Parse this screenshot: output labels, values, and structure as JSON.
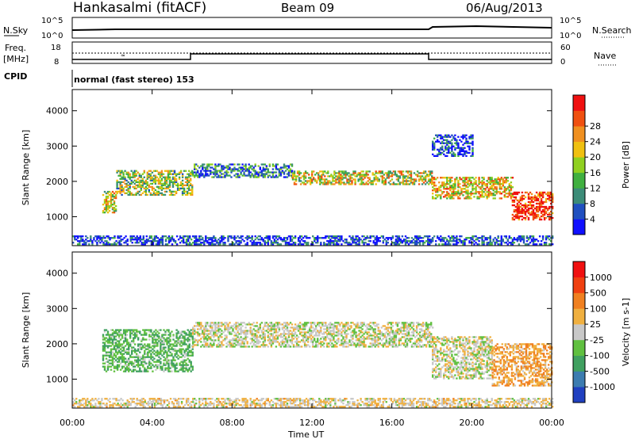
{
  "header": {
    "station": "Hankasalmi (fitACF)",
    "beam": "Beam 09",
    "date": "06/Aug/2013"
  },
  "info_panel": {
    "nsky_label": "N.Sky",
    "nsky_ticks": [
      "10^5",
      "10^0"
    ],
    "nsearch_label": "N.Search",
    "nsearch_ticks": [
      "10^5",
      "10^0"
    ],
    "freq_label_1": "Freq.",
    "freq_label_2": "[MHz]",
    "freq_ticks": [
      "18",
      "8"
    ],
    "nave_label": "Nave",
    "nave_ticks": [
      "60",
      "0"
    ],
    "cpid_label": "CPID",
    "cpid_text": "normal (fast stereo) 153"
  },
  "axes": {
    "xlabel": "Time UT",
    "ylabel": "Slant Range [km]",
    "xticks": [
      "00:00",
      "04:00",
      "08:00",
      "12:00",
      "16:00",
      "20:00",
      "00:00"
    ],
    "yticks": [
      "1000",
      "2000",
      "3000",
      "4000"
    ]
  },
  "power_colorbar": {
    "label": "Power [dB]",
    "ticks": [
      "4",
      "8",
      "12",
      "16",
      "20",
      "24",
      "28"
    ],
    "colors": [
      "#1010ff",
      "#2050c0",
      "#3c8c78",
      "#40b040",
      "#90d020",
      "#f0c010",
      "#f09020",
      "#f05010",
      "#f01010"
    ]
  },
  "velocity_colorbar": {
    "label": "Velocity [m s-1]",
    "ticks": [
      "1000",
      "500",
      "100",
      "25",
      "-25",
      "-100",
      "-500",
      "-1000"
    ],
    "colors": [
      "#2040c0",
      "#3c7cb0",
      "#40a060",
      "#60c040",
      "#c8c8c8",
      "#f0b040",
      "#f08020",
      "#f04010",
      "#f01010"
    ]
  },
  "chart_data": [
    {
      "type": "heatmap",
      "title": "Power",
      "xlabel": "Time UT",
      "ylabel": "Slant Range [km]",
      "xlim": [
        0,
        24
      ],
      "ylim": [
        180,
        4600
      ],
      "colorbar_range": [
        3,
        30
      ],
      "echo_regions": [
        {
          "t": [
            0,
            24
          ],
          "range": [
            200,
            450
          ],
          "power": 6
        },
        {
          "t": [
            1.5,
            2.2
          ],
          "range": [
            1100,
            1700
          ],
          "power": 18
        },
        {
          "t": [
            2.2,
            6.0
          ],
          "range": [
            1600,
            2300
          ],
          "power": 16
        },
        {
          "t": [
            6.0,
            11.0
          ],
          "range": [
            2100,
            2500
          ],
          "power": 10
        },
        {
          "t": [
            11.0,
            18.0
          ],
          "range": [
            1900,
            2300
          ],
          "power": 18
        },
        {
          "t": [
            18.0,
            22.0
          ],
          "range": [
            1500,
            2100
          ],
          "power": 20
        },
        {
          "t": [
            18.0,
            20.0
          ],
          "range": [
            2700,
            3300
          ],
          "power": 6
        },
        {
          "t": [
            22.0,
            24.0
          ],
          "range": [
            900,
            1700
          ],
          "power": 28
        }
      ]
    },
    {
      "type": "heatmap",
      "title": "Velocity",
      "xlabel": "Time UT",
      "ylabel": "Slant Range [km]",
      "xlim": [
        0,
        24
      ],
      "ylim": [
        180,
        4600
      ],
      "colorbar_range": [
        -1000,
        1000
      ],
      "echo_regions": [
        {
          "t": [
            0,
            24
          ],
          "range": [
            200,
            450
          ],
          "velocity": 100
        },
        {
          "t": [
            1.5,
            6.0
          ],
          "range": [
            1200,
            2400
          ],
          "velocity": -300
        },
        {
          "t": [
            6.0,
            18.0
          ],
          "range": [
            1900,
            2600
          ],
          "velocity": 0
        },
        {
          "t": [
            18.0,
            21.0
          ],
          "range": [
            1000,
            2200
          ],
          "velocity": 0
        },
        {
          "t": [
            21.0,
            24.0
          ],
          "range": [
            800,
            2000
          ],
          "velocity": 300
        }
      ]
    }
  ]
}
